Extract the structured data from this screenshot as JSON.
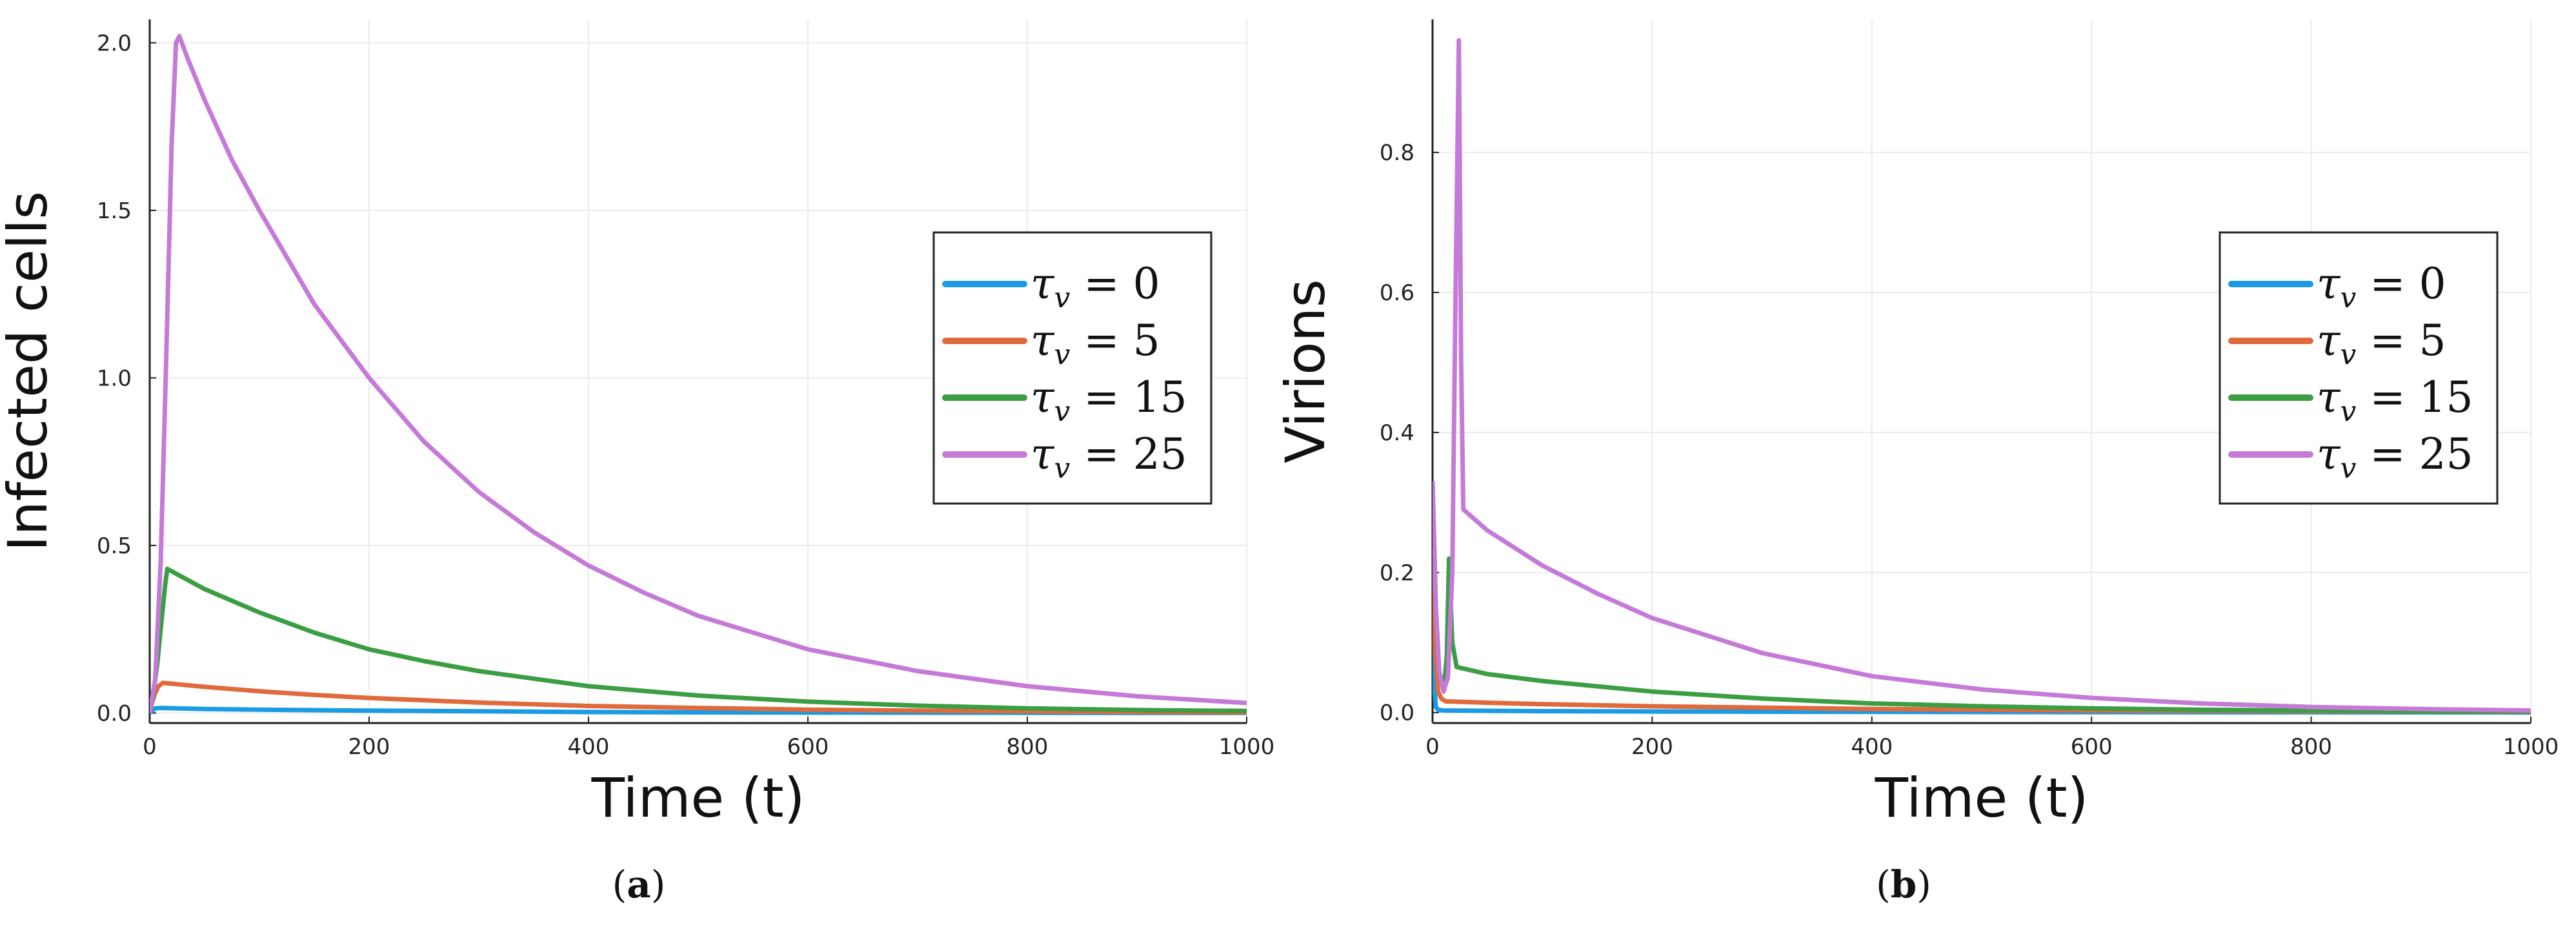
{
  "chart_data": [
    {
      "type": "line",
      "panel_label": "a",
      "xlabel": "Time (t)",
      "ylabel": "Infected cells",
      "xlim": [
        0,
        1000
      ],
      "ylim": [
        -0.03,
        2.07
      ],
      "xticks": [
        0,
        200,
        400,
        600,
        800,
        1000
      ],
      "yticks": [
        0.0,
        0.5,
        1.0,
        1.5,
        2.0
      ],
      "ytick_labels": [
        "0.0",
        "0.5",
        "1.0",
        "1.5",
        "2.0"
      ],
      "grid": true,
      "legend_position": "right",
      "series": [
        {
          "name": "τ_v = 0",
          "legend_sym": "τ",
          "legend_sub": "v",
          "legend_rest": " = 0",
          "color": "#1a9be3",
          "x": [
            0,
            1,
            5,
            10,
            50,
            100,
            200,
            300,
            400,
            500,
            600,
            700,
            800,
            900,
            1000
          ],
          "y": [
            0.0,
            0.004,
            0.014,
            0.015,
            0.012,
            0.01,
            0.007,
            0.005,
            0.003,
            0.002,
            0.0015,
            0.001,
            0.0007,
            0.0005,
            0.0003
          ]
        },
        {
          "name": "τ_v = 5",
          "legend_sym": "τ",
          "legend_sub": "v",
          "legend_rest": " = 5",
          "color": "#e06a3c",
          "x": [
            0,
            2,
            5,
            8,
            12,
            50,
            100,
            150,
            200,
            300,
            400,
            500,
            600,
            700,
            800,
            900,
            1000
          ],
          "y": [
            0.0,
            0.03,
            0.06,
            0.08,
            0.09,
            0.078,
            0.065,
            0.054,
            0.045,
            0.031,
            0.021,
            0.015,
            0.01,
            0.007,
            0.005,
            0.003,
            0.002
          ]
        },
        {
          "name": "τ_v = 15",
          "legend_sym": "τ",
          "legend_sub": "v",
          "legend_rest": " = 15",
          "color": "#3b9e43",
          "x": [
            0,
            3,
            7,
            10,
            14,
            16,
            50,
            100,
            150,
            200,
            250,
            300,
            400,
            500,
            600,
            700,
            800,
            900,
            1000
          ],
          "y": [
            0.0,
            0.05,
            0.15,
            0.25,
            0.38,
            0.43,
            0.37,
            0.3,
            0.24,
            0.19,
            0.155,
            0.125,
            0.08,
            0.052,
            0.034,
            0.022,
            0.014,
            0.009,
            0.006
          ]
        },
        {
          "name": "τ_v = 25",
          "legend_sym": "τ",
          "legend_sub": "v",
          "legend_rest": " = 25",
          "color": "#c57ad8",
          "x": [
            0,
            5,
            10,
            15,
            20,
            24,
            27,
            35,
            50,
            75,
            100,
            150,
            200,
            250,
            300,
            350,
            400,
            450,
            500,
            600,
            700,
            800,
            900,
            1000
          ],
          "y": [
            0.0,
            0.1,
            0.45,
            1.05,
            1.7,
            2.0,
            2.02,
            1.95,
            1.83,
            1.65,
            1.5,
            1.22,
            1.0,
            0.81,
            0.66,
            0.54,
            0.44,
            0.36,
            0.29,
            0.19,
            0.125,
            0.08,
            0.05,
            0.03
          ]
        }
      ]
    },
    {
      "type": "line",
      "panel_label": "b",
      "xlabel": "Time (t)",
      "ylabel": "Virions",
      "xlim": [
        0,
        1000
      ],
      "ylim": [
        -0.015,
        0.99
      ],
      "xticks": [
        0,
        200,
        400,
        600,
        800,
        1000
      ],
      "yticks": [
        0.0,
        0.2,
        0.4,
        0.6,
        0.8
      ],
      "ytick_labels": [
        "0.0",
        "0.2",
        "0.4",
        "0.6",
        "0.8"
      ],
      "grid": true,
      "legend_position": "right",
      "series": [
        {
          "name": "τ_v = 0",
          "legend_sym": "τ",
          "legend_sub": "v",
          "legend_rest": " = 0",
          "color": "#1a9be3",
          "x": [
            0,
            1,
            3,
            5,
            10,
            50,
            100,
            200,
            400,
            600,
            800,
            1000
          ],
          "y": [
            0.33,
            0.05,
            0.008,
            0.004,
            0.003,
            0.0025,
            0.002,
            0.0015,
            0.001,
            0.0006,
            0.0004,
            0.0002
          ]
        },
        {
          "name": "τ_v = 5",
          "legend_sym": "τ",
          "legend_sub": "v",
          "legend_rest": " = 5",
          "color": "#e06a3c",
          "x": [
            0,
            2,
            5,
            8,
            12,
            50,
            100,
            200,
            300,
            400,
            600,
            800,
            1000
          ],
          "y": [
            0.33,
            0.1,
            0.03,
            0.02,
            0.016,
            0.014,
            0.012,
            0.009,
            0.007,
            0.005,
            0.003,
            0.002,
            0.001
          ]
        },
        {
          "name": "τ_v = 15",
          "legend_sym": "τ",
          "legend_sub": "v",
          "legend_rest": " = 15",
          "color": "#3b9e43",
          "x": [
            0,
            3,
            6,
            10,
            13,
            15,
            18,
            22,
            50,
            100,
            200,
            300,
            400,
            500,
            600,
            700,
            800,
            900,
            1000
          ],
          "y": [
            0.33,
            0.15,
            0.06,
            0.03,
            0.08,
            0.22,
            0.1,
            0.065,
            0.055,
            0.045,
            0.03,
            0.02,
            0.013,
            0.009,
            0.006,
            0.004,
            0.003,
            0.002,
            0.0015
          ]
        },
        {
          "name": "τ_v = 25",
          "legend_sym": "τ",
          "legend_sub": "v",
          "legend_rest": " = 25",
          "color": "#c57ad8",
          "x": [
            0,
            3,
            6,
            10,
            14,
            18,
            21,
            24,
            26,
            28,
            50,
            100,
            150,
            200,
            300,
            400,
            500,
            600,
            700,
            800,
            900,
            1000
          ],
          "y": [
            0.33,
            0.15,
            0.06,
            0.03,
            0.05,
            0.2,
            0.6,
            0.96,
            0.5,
            0.29,
            0.26,
            0.21,
            0.17,
            0.135,
            0.085,
            0.052,
            0.033,
            0.021,
            0.013,
            0.008,
            0.005,
            0.003
          ]
        }
      ]
    }
  ]
}
